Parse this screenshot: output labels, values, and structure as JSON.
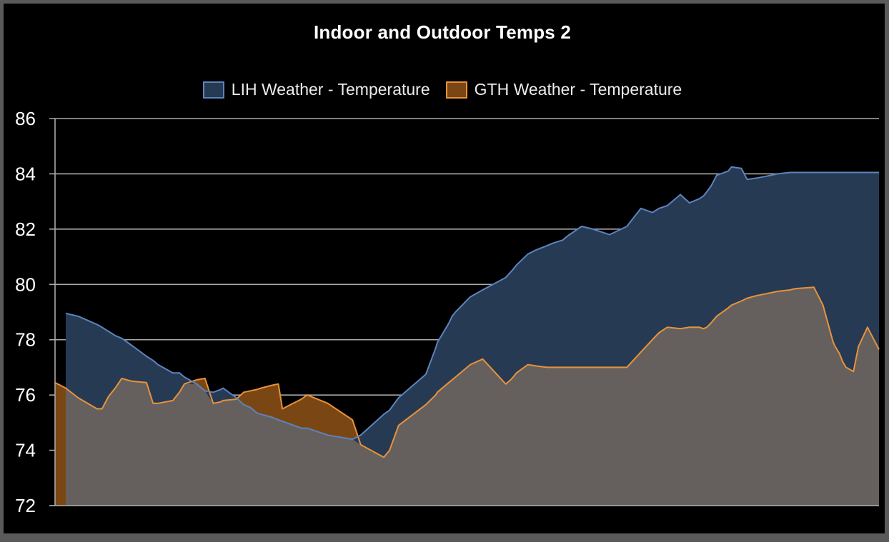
{
  "chart_data": {
    "type": "area",
    "title": "Indoor and Outdoor Temps 2",
    "xlabel": "",
    "ylabel": "",
    "ylim": [
      72,
      86
    ],
    "yticks": [
      72,
      74,
      76,
      78,
      80,
      82,
      84,
      86
    ],
    "grid": true,
    "legend_position": "top-center",
    "x": [
      0,
      1.3,
      2.8,
      5.1,
      5.7,
      6.5,
      7.3,
      8.1,
      9.3,
      11.1,
      11.9,
      12.5,
      14.3,
      15.1,
      15.7,
      17.2,
      18.2,
      19.2,
      20.1,
      20.4,
      22.0,
      22.9,
      23.7,
      24.5,
      25.0,
      26.3,
      27.1,
      27.6,
      29.9,
      30.6,
      33.1,
      36.1,
      37.1,
      39.9,
      40.6,
      41.7,
      45.0,
      46.2,
      46.4,
      47.2,
      47.8,
      48.2,
      48.6,
      50.4,
      51.9,
      54.7,
      55.3,
      55.6,
      56.0,
      57.4,
      58.4,
      59.7,
      60.5,
      61.6,
      62.2,
      63.9,
      65.3,
      67.3,
      69.4,
      71.1,
      72.5,
      73.3,
      74.3,
      75.9,
      77.0,
      78.2,
      78.7,
      79.1,
      79.6,
      80.3,
      81.7,
      82.1,
      83.3,
      84.0,
      85.2,
      86.1,
      86.9,
      87.7,
      89.2,
      89.9,
      92.1,
      93.2,
      94.4,
      94.6,
      95.2,
      95.6,
      96.0,
      96.9,
      97.5,
      98.6,
      100
    ],
    "series": [
      {
        "name": "LIH Weather - Temperature",
        "color": "#5b84bd",
        "fill": "#263a54",
        "values": [
          null,
          78.95,
          78.85,
          78.55,
          78.45,
          78.3,
          78.15,
          78.05,
          77.8,
          77.4,
          77.25,
          77.1,
          76.8,
          76.8,
          76.65,
          76.4,
          76.15,
          76.1,
          76.2,
          76.25,
          75.9,
          75.65,
          75.55,
          75.35,
          75.3,
          75.2,
          75.1,
          75.05,
          74.8,
          74.8,
          74.55,
          74.4,
          74.55,
          75.3,
          75.45,
          75.9,
          76.75,
          77.7,
          77.9,
          78.3,
          78.6,
          78.85,
          79.0,
          79.55,
          79.8,
          80.25,
          80.45,
          80.55,
          80.7,
          81.1,
          81.25,
          81.4,
          81.5,
          81.6,
          81.75,
          82.1,
          82.0,
          81.8,
          82.1,
          82.75,
          82.6,
          82.75,
          82.85,
          83.25,
          82.95,
          83.1,
          83.2,
          83.35,
          83.55,
          83.95,
          84.1,
          84.25,
          84.2,
          83.8,
          83.85,
          83.9,
          83.95,
          84.0,
          84.05,
          84.05,
          84.05,
          84.05,
          84.05,
          84.05,
          84.05,
          84.05,
          84.05,
          84.05,
          84.05,
          84.05,
          84.05
        ]
      },
      {
        "name": "GTH Weather - Temperature",
        "color": "#e8923a",
        "fill": "#7a4714",
        "values": [
          76.45,
          76.25,
          75.9,
          75.5,
          75.5,
          75.95,
          76.25,
          76.6,
          76.5,
          76.45,
          75.7,
          75.7,
          75.8,
          76.1,
          76.4,
          76.55,
          76.6,
          75.7,
          75.75,
          75.8,
          75.85,
          76.1,
          76.15,
          76.2,
          76.25,
          76.35,
          76.4,
          75.5,
          75.85,
          76.0,
          75.7,
          75.1,
          74.2,
          73.75,
          74.0,
          74.9,
          75.65,
          76.0,
          76.1,
          76.3,
          76.45,
          76.55,
          76.65,
          77.1,
          77.3,
          76.4,
          76.55,
          76.65,
          76.8,
          77.1,
          77.05,
          77.0,
          77.0,
          77.0,
          77.0,
          77.0,
          77.0,
          77.0,
          77.0,
          77.55,
          78.0,
          78.25,
          78.45,
          78.4,
          78.45,
          78.45,
          78.4,
          78.45,
          78.6,
          78.85,
          79.15,
          79.25,
          79.4,
          79.5,
          79.6,
          79.65,
          79.7,
          79.75,
          79.8,
          79.85,
          79.9,
          79.25,
          77.95,
          77.8,
          77.5,
          77.2,
          77.0,
          76.85,
          77.75,
          78.45,
          77.65
        ]
      }
    ]
  }
}
